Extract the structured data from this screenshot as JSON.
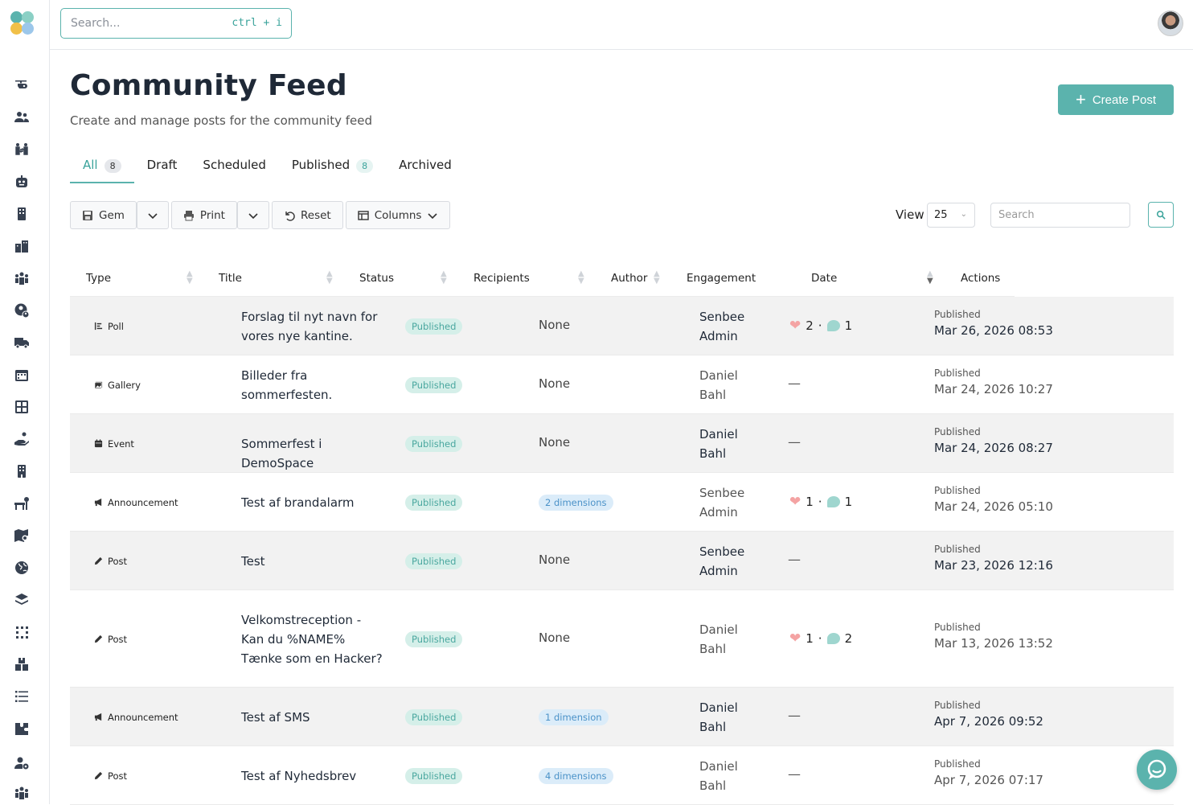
{
  "search": {
    "placeholder": "Search...",
    "shortcut": "ctrl + i"
  },
  "header": {
    "title": "Community Feed",
    "subtitle": "Create and manage posts for the community feed",
    "create_label": "Create Post"
  },
  "tabs": [
    {
      "label": "All",
      "count": "8"
    },
    {
      "label": "Draft"
    },
    {
      "label": "Scheduled"
    },
    {
      "label": "Published",
      "count": "8"
    },
    {
      "label": "Archived"
    }
  ],
  "toolbar": {
    "gem": "Gem",
    "print": "Print",
    "reset": "Reset",
    "columns": "Columns"
  },
  "view": {
    "label": "View",
    "value": "25",
    "search_placeholder": "Search"
  },
  "columns": {
    "type": "Type",
    "title": "Title",
    "status": "Status",
    "recipients": "Recipients",
    "author": "Author",
    "engagement": "Engagement",
    "date": "Date",
    "actions": "Actions"
  },
  "rows": [
    {
      "type": "Poll",
      "title": "Forslag til nyt navn for vores nye kantine.",
      "status": "Published",
      "recipients": "None",
      "author": "Senbee Admin",
      "likes": "2",
      "comments": "1",
      "date_label": "Published",
      "date": "Mar 26, 2026 08:53"
    },
    {
      "type": "Gallery",
      "title": "Billeder fra sommerfesten.",
      "status": "Published",
      "recipients": "None",
      "author": "Daniel Bahl",
      "engagement": "—",
      "date_label": "Published",
      "date": "Mar 24, 2026 10:27"
    },
    {
      "type": "Event",
      "title": "Sommerfest i DemoSpace",
      "status": "Published",
      "recipients": "None",
      "author": "Daniel Bahl",
      "engagement": "—",
      "date_label": "Published",
      "date": "Mar 24, 2026 08:27"
    },
    {
      "type": "Announcement",
      "title": "Test af brandalarm",
      "status": "Published",
      "recipients": "2 dimensions",
      "author": "Senbee Admin",
      "likes": "1",
      "comments": "1",
      "date_label": "Published",
      "date": "Mar 24, 2026 05:10"
    },
    {
      "type": "Post",
      "title": "Test",
      "status": "Published",
      "recipients": "None",
      "author": "Senbee Admin",
      "engagement": "—",
      "date_label": "Published",
      "date": "Mar 23, 2026 12:16"
    },
    {
      "type": "Post",
      "title": "Velkomstreception - Kan du %NAME% Tænke som en Hacker?",
      "status": "Published",
      "recipients": "None",
      "author": "Daniel Bahl",
      "likes": "1",
      "comments": "2",
      "date_label": "Published",
      "date": "Mar 13, 2026 13:52"
    },
    {
      "type": "Announcement",
      "title": "Test af SMS",
      "status": "Published",
      "recipients": "1 dimension",
      "author": "Daniel Bahl",
      "engagement": "—",
      "date_label": "Published",
      "date": "Apr 7, 2026 09:52"
    },
    {
      "type": "Post",
      "title": "Test af Nyhedsbrev",
      "status": "Published",
      "recipients": "4 dimensions",
      "author": "Daniel Bahl",
      "engagement": "—",
      "date_label": "Published",
      "date": "Apr 7, 2026 07:17"
    }
  ],
  "colors": {
    "accent": "#5bb3ad",
    "row_shade": "#f2f2f2"
  }
}
